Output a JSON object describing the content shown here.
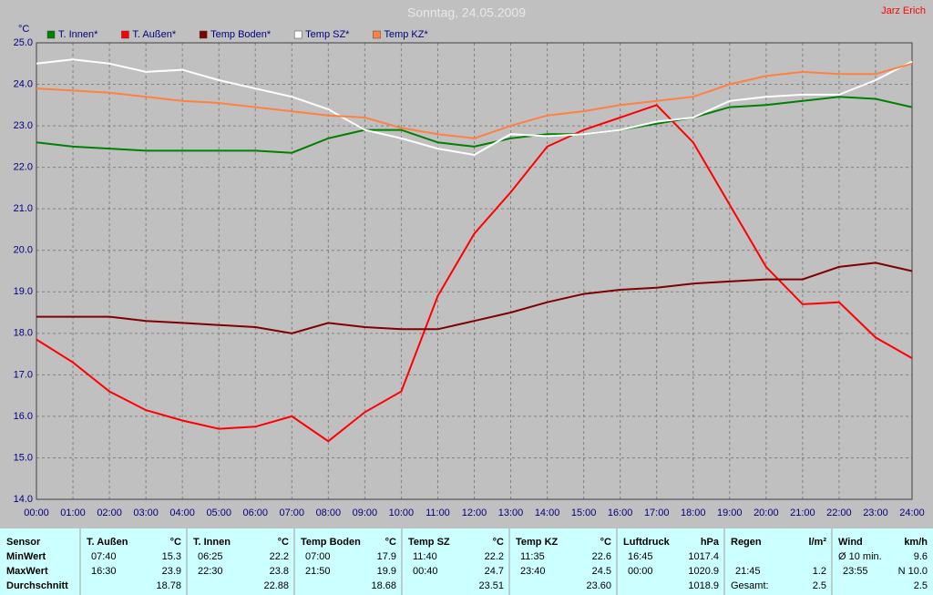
{
  "chart_data": {
    "type": "line",
    "title": "Sonntag, 24.05.2009",
    "author": "Jarz Erich",
    "y_label": "°C",
    "legend": "top",
    "grid": true,
    "x": [
      0,
      1,
      2,
      3,
      4,
      5,
      6,
      7,
      8,
      9,
      10,
      11,
      12,
      13,
      14,
      15,
      16,
      17,
      18,
      19,
      20,
      21,
      22,
      23,
      24
    ],
    "xlim": [
      0,
      24
    ],
    "xticks": [
      {
        "value": 0,
        "label": "00:00"
      },
      {
        "value": 1,
        "label": "01:00"
      },
      {
        "value": 2,
        "label": "02:00"
      },
      {
        "value": 3,
        "label": "03:00"
      },
      {
        "value": 4,
        "label": "04:00"
      },
      {
        "value": 5,
        "label": "05:00"
      },
      {
        "value": 6,
        "label": "06:00"
      },
      {
        "value": 7,
        "label": "07:00"
      },
      {
        "value": 8,
        "label": "08:00"
      },
      {
        "value": 9,
        "label": "09:00"
      },
      {
        "value": 10,
        "label": "10:00"
      },
      {
        "value": 11,
        "label": "11:00"
      },
      {
        "value": 12,
        "label": "12:00"
      },
      {
        "value": 13,
        "label": "13:00"
      },
      {
        "value": 14,
        "label": "14:00"
      },
      {
        "value": 15,
        "label": "15:00"
      },
      {
        "value": 16,
        "label": "16:00"
      },
      {
        "value": 17,
        "label": "17:00"
      },
      {
        "value": 18,
        "label": "18:00"
      },
      {
        "value": 19,
        "label": "19:00"
      },
      {
        "value": 20,
        "label": "20:00"
      },
      {
        "value": 21,
        "label": "21:00"
      },
      {
        "value": 22,
        "label": "22:00"
      },
      {
        "value": 23,
        "label": "23:00"
      },
      {
        "value": 24,
        "label": "24:00"
      }
    ],
    "ylim": [
      14,
      25
    ],
    "yticks": [
      {
        "value": 14,
        "label": "14.0"
      },
      {
        "value": 15,
        "label": "15.0"
      },
      {
        "value": 16,
        "label": "16.0"
      },
      {
        "value": 17,
        "label": "17.0"
      },
      {
        "value": 18,
        "label": "18.0"
      },
      {
        "value": 19,
        "label": "19.0"
      },
      {
        "value": 20,
        "label": "20.0"
      },
      {
        "value": 21,
        "label": "21.0"
      },
      {
        "value": 22,
        "label": "22.0"
      },
      {
        "value": 23,
        "label": "23.0"
      },
      {
        "value": 24,
        "label": "24.0"
      },
      {
        "value": 25,
        "label": "25.0"
      }
    ],
    "series": [
      {
        "name": "T. Innen*",
        "color": "#008000",
        "values": [
          22.6,
          22.5,
          22.45,
          22.4,
          22.4,
          22.4,
          22.4,
          22.35,
          22.7,
          22.9,
          22.9,
          22.6,
          22.5,
          22.7,
          22.8,
          22.8,
          22.9,
          23.05,
          23.2,
          23.45,
          23.5,
          23.6,
          23.7,
          23.65,
          23.45
        ]
      },
      {
        "name": "T. Außen*",
        "color": "#ff0000",
        "values": [
          17.85,
          17.3,
          16.6,
          16.15,
          15.9,
          15.7,
          15.75,
          16.0,
          15.4,
          16.1,
          16.6,
          18.9,
          20.4,
          21.4,
          22.5,
          22.9,
          23.2,
          23.5,
          22.6,
          21.1,
          19.6,
          18.7,
          18.75,
          17.9,
          17.4
        ]
      },
      {
        "name": "Temp Boden*",
        "color": "#800000",
        "values": [
          18.4,
          18.4,
          18.4,
          18.3,
          18.25,
          18.2,
          18.15,
          18.0,
          18.25,
          18.15,
          18.1,
          18.1,
          18.3,
          18.5,
          18.75,
          18.95,
          19.05,
          19.1,
          19.2,
          19.25,
          19.3,
          19.3,
          19.6,
          19.7,
          19.5
        ]
      },
      {
        "name": "Temp SZ*",
        "color": "#ffffff",
        "values": [
          24.5,
          24.6,
          24.5,
          24.3,
          24.35,
          24.1,
          23.9,
          23.7,
          23.4,
          22.9,
          22.7,
          22.45,
          22.3,
          22.8,
          22.75,
          22.8,
          22.9,
          23.1,
          23.2,
          23.6,
          23.7,
          23.75,
          23.75,
          24.1,
          24.55
        ]
      },
      {
        "name": "Temp KZ*",
        "color": "#ff8040",
        "values": [
          23.9,
          23.85,
          23.8,
          23.7,
          23.6,
          23.55,
          23.45,
          23.35,
          23.25,
          23.2,
          22.95,
          22.8,
          22.7,
          23.0,
          23.25,
          23.35,
          23.5,
          23.6,
          23.7,
          24.0,
          24.2,
          24.3,
          24.25,
          24.25,
          24.5
        ]
      }
    ]
  },
  "table": {
    "columns": [
      {
        "name": "Sensor",
        "unit": null
      },
      {
        "name": "T. Außen",
        "unit": "°C"
      },
      {
        "name": "T. Innen",
        "unit": "°C"
      },
      {
        "name": "Temp Boden",
        "unit": "°C"
      },
      {
        "name": "Temp SZ",
        "unit": "°C"
      },
      {
        "name": "Temp KZ",
        "unit": "°C"
      },
      {
        "name": "Luftdruck",
        "unit": "hPa"
      },
      {
        "name": "Regen",
        "unit": "l/m²"
      },
      {
        "name": "Wind",
        "unit": "km/h"
      }
    ],
    "rows": [
      {
        "label": "MinWert",
        "cells": [
          [
            "07:40",
            "15.3"
          ],
          [
            "06:25",
            "22.2"
          ],
          [
            "07:00",
            "17.9"
          ],
          [
            "11:40",
            "22.2"
          ],
          [
            "11:35",
            "22.6"
          ],
          [
            "16:45",
            "1017.4"
          ],
          [
            null,
            null
          ],
          [
            "Ø 10 min.",
            "9.6"
          ]
        ]
      },
      {
        "label": "MaxWert",
        "cells": [
          [
            "16:30",
            "23.9"
          ],
          [
            "22:30",
            "23.8"
          ],
          [
            "21:50",
            "19.9"
          ],
          [
            "00:40",
            "24.7"
          ],
          [
            "23:40",
            "24.5"
          ],
          [
            "00:00",
            "1020.9"
          ],
          [
            "21:45",
            "1.2"
          ],
          [
            "23:55",
            "N 10.0"
          ]
        ]
      },
      {
        "label": "Durchschnitt",
        "cells": [
          [
            null,
            "18.78"
          ],
          [
            null,
            "22.88"
          ],
          [
            null,
            "18.68"
          ],
          [
            null,
            "23.51"
          ],
          [
            null,
            "23.60"
          ],
          [
            null,
            "1018.9"
          ],
          [
            "Gesamt:",
            "2.5"
          ],
          [
            null,
            "2.5"
          ]
        ]
      }
    ]
  }
}
